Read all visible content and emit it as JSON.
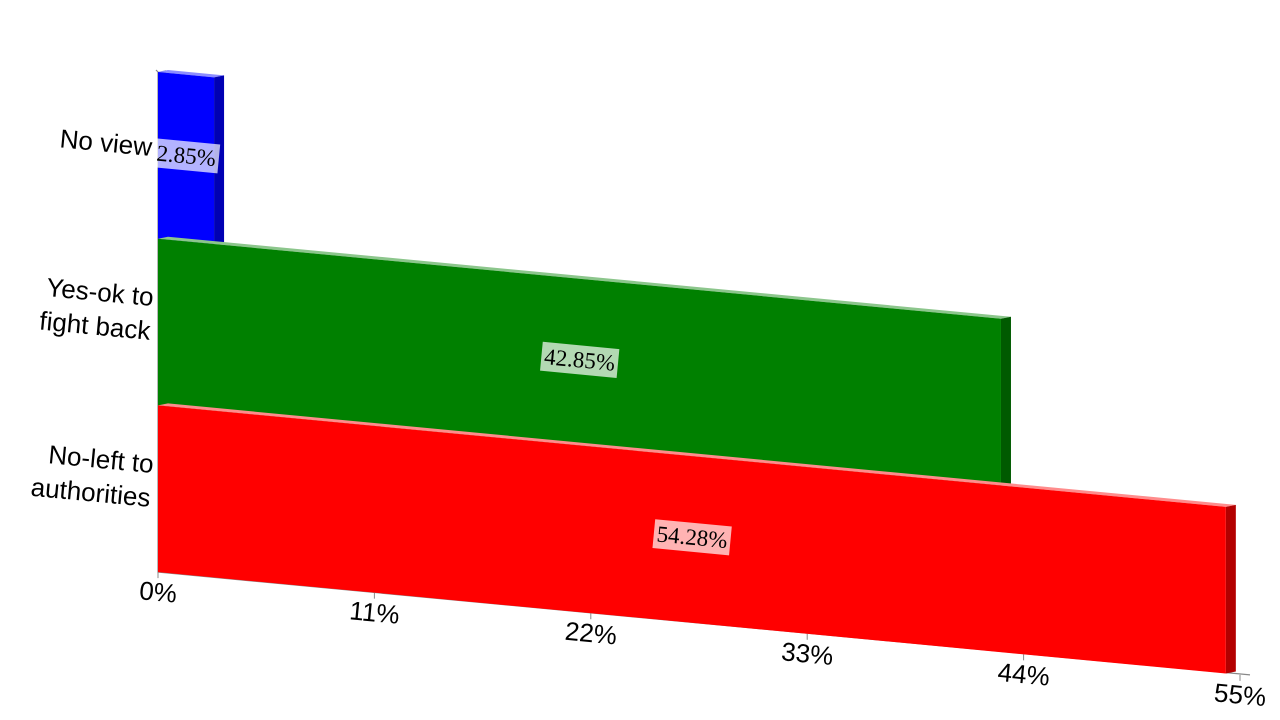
{
  "chart_data": {
    "type": "bar3d",
    "categories": [
      "No view",
      "Yes-ok to fight back",
      "No-left to authorities"
    ],
    "values": [
      2.85,
      42.85,
      54.28
    ],
    "value_labels": [
      "2.85%",
      "42.85%",
      "54.28%"
    ],
    "colors": [
      "#0000ff",
      "#008000",
      "#ff0000"
    ],
    "xlim": [
      0,
      55
    ],
    "xticks": [
      {
        "value": 0,
        "label": "0%"
      },
      {
        "value": 11,
        "label": "11%"
      },
      {
        "value": 22,
        "label": "22%"
      },
      {
        "value": 33,
        "label": "33%"
      },
      {
        "value": 44,
        "label": "44%"
      },
      {
        "value": 55,
        "label": "55%"
      }
    ]
  }
}
